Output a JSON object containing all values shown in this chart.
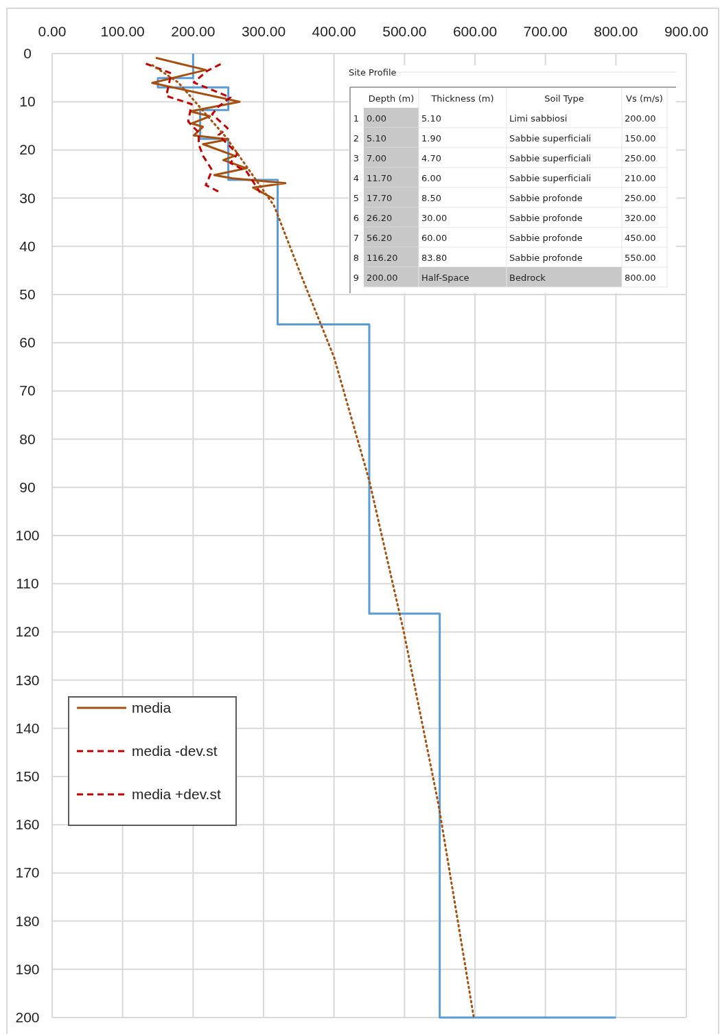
{
  "chart_data": {
    "type": "line",
    "xlim": [
      0,
      900
    ],
    "ylim": [
      200,
      0
    ],
    "xticks": [
      {
        "value": 0,
        "label": "0.00"
      },
      {
        "value": 100,
        "label": "100.00"
      },
      {
        "value": 200,
        "label": "200.00"
      },
      {
        "value": 300,
        "label": "300.00"
      },
      {
        "value": 400,
        "label": "400.00"
      },
      {
        "value": 500,
        "label": "500.00"
      },
      {
        "value": 600,
        "label": "600.00"
      },
      {
        "value": 700,
        "label": "700.00"
      },
      {
        "value": 800,
        "label": "800.00"
      },
      {
        "value": 900,
        "label": "900.00"
      }
    ],
    "yticks": [
      0,
      10,
      20,
      30,
      40,
      50,
      60,
      70,
      80,
      90,
      100,
      110,
      120,
      130,
      140,
      150,
      160,
      170,
      180,
      190,
      200
    ],
    "grid": true,
    "legend": "bottom left",
    "series": [
      {
        "type": "step",
        "color": "#5b9bd5",
        "line_style": "solid",
        "x": [
          200,
          200,
          150,
          150,
          250,
          250,
          210,
          210,
          250,
          250,
          320,
          320,
          450,
          450,
          550,
          550,
          800
        ],
        "values": [
          0,
          5.1,
          5.1,
          7,
          7,
          11.7,
          11.7,
          17.7,
          17.7,
          26.2,
          26.2,
          56.2,
          56.2,
          116.2,
          116.2,
          200,
          200
        ]
      },
      {
        "name": "media",
        "color": "#a5500f",
        "line_style": "solid",
        "x": [
          147,
          218,
          142,
          266,
          196,
          224,
          198,
          214,
          201,
          250,
          214,
          259,
          243,
          276,
          230,
          256,
          331,
          285,
          315
        ],
        "values": [
          0.9,
          3.4,
          6.1,
          10,
          12,
          13,
          14.5,
          15.2,
          17,
          17.8,
          18.8,
          21.2,
          22.1,
          23.8,
          25.2,
          25.9,
          26.9,
          27.8,
          30.2
        ]
      },
      {
        "name": "media -dev.st",
        "color": "#c00000",
        "line_style": "dashed",
        "x": [
          133,
          169,
          162,
          198,
          193,
          208,
          208,
          214,
          227,
          218,
          241
        ],
        "values": [
          2.1,
          4.1,
          8.8,
          10.5,
          14.1,
          16.4,
          18.8,
          21.2,
          24.2,
          27.3,
          29
        ]
      },
      {
        "name": "media +dev.st",
        "color": "#c00000",
        "line_style": "dashed",
        "x": [
          239,
          220,
          201,
          253,
          236,
          227,
          249,
          236,
          263,
          253,
          276,
          295
        ],
        "values": [
          2.2,
          3.6,
          6,
          9.1,
          11,
          12.6,
          15.5,
          16.9,
          20.8,
          22.7,
          24.5,
          28.8
        ]
      },
      {
        "color": "#a5500f",
        "line_style": "dotted",
        "x": [
          142,
          179,
          247,
          315,
          353,
          400,
          450,
          499,
          548,
          598
        ],
        "values": [
          2.4,
          6,
          17.4,
          31.6,
          45.9,
          63,
          88.6,
          120,
          155.6,
          199.7
        ]
      }
    ],
    "annotations": [
      "Site Profile",
      "Depth (m)",
      "Thickness (m)",
      "Soil Type",
      "Vs (m/s)",
      "1",
      "0.00",
      "5.10",
      "Limi sabbiosi",
      "200.00",
      "2",
      "5.10",
      "1.90",
      "Sabbie superficiali",
      "150.00",
      "3",
      "7.00",
      "4.70",
      "Sabbie superficiali",
      "250.00",
      "4",
      "11.70",
      "6.00",
      "Sabbie superficiali",
      "210.00",
      "5",
      "17.70",
      "8.50",
      "Sabbie profonde",
      "250.00",
      "6",
      "26.20",
      "30.00",
      "Sabbie profonde",
      "320.00",
      "7",
      "56.20",
      "60.00",
      "Sabbie profonde",
      "450.00",
      "8",
      "116.20",
      "83.80",
      "Sabbie profonde",
      "550.00",
      "9",
      "200.00",
      "Half-Space",
      "Bedrock",
      "800.00"
    ]
  }
}
